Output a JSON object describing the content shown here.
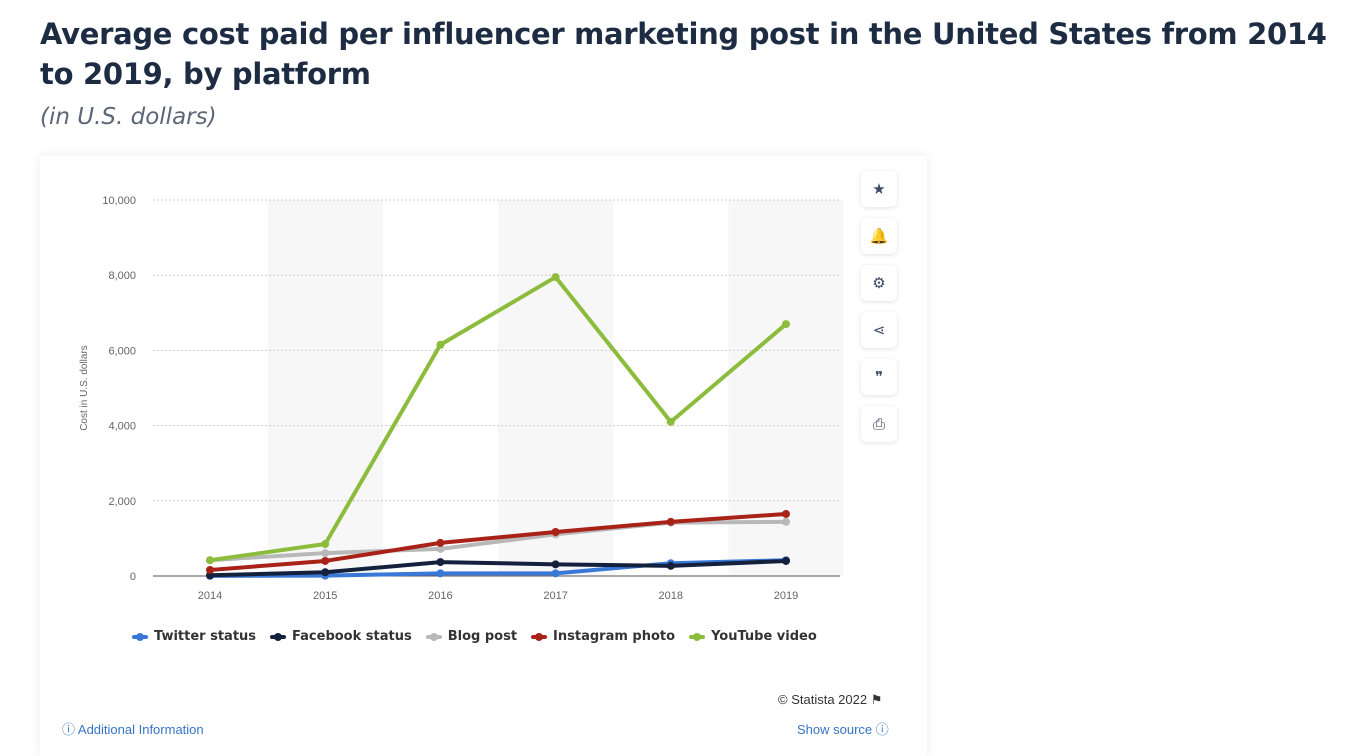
{
  "title": "Average cost paid per influencer marketing post in the United States from 2014 to 2019, by platform",
  "subtitle": "(in U.S. dollars)",
  "tools": [
    {
      "icon": "star-icon",
      "glyph": "★"
    },
    {
      "icon": "bell-icon",
      "glyph": "🔔"
    },
    {
      "icon": "gear-icon",
      "glyph": "⚙"
    },
    {
      "icon": "share-icon",
      "glyph": "⋖"
    },
    {
      "icon": "quote-icon",
      "glyph": "❞"
    },
    {
      "icon": "print-icon",
      "glyph": "⎙"
    }
  ],
  "credit": "© Statista 2022 ⚑",
  "additional_info": "ⓘ Additional Information",
  "show_source": "Show source ⓘ",
  "chart_data": {
    "type": "line",
    "title": "Average cost paid per influencer marketing post in the United States from 2014 to 2019, by platform",
    "ylabel": "Cost in U.S. dollars",
    "xlabel": "",
    "categories": [
      "2014",
      "2015",
      "2016",
      "2017",
      "2018",
      "2019"
    ],
    "ylim": [
      0,
      10000
    ],
    "yticks": [
      0,
      2000,
      4000,
      6000,
      8000,
      10000
    ],
    "ytick_labels": [
      "0",
      "2,000",
      "4,000",
      "6,000",
      "8,000",
      "10,000"
    ],
    "grid": true,
    "legend": "bottom",
    "series": [
      {
        "name": "Twitter status",
        "color": "#3a78d8",
        "values": [
          2,
          10,
          70,
          70,
          340,
          420
        ]
      },
      {
        "name": "Facebook status",
        "color": "#14213d",
        "values": [
          20,
          100,
          370,
          310,
          270,
          400
        ]
      },
      {
        "name": "Blog post",
        "color": "#b8b8b8",
        "values": [
          420,
          610,
          720,
          1110,
          1420,
          1440
        ]
      },
      {
        "name": "Instagram photo",
        "color": "#a82218",
        "values": [
          160,
          400,
          880,
          1170,
          1440,
          1650
        ]
      },
      {
        "name": "YouTube video",
        "color": "#8cbc3c",
        "values": [
          420,
          850,
          6150,
          7950,
          4100,
          6700
        ]
      }
    ]
  }
}
